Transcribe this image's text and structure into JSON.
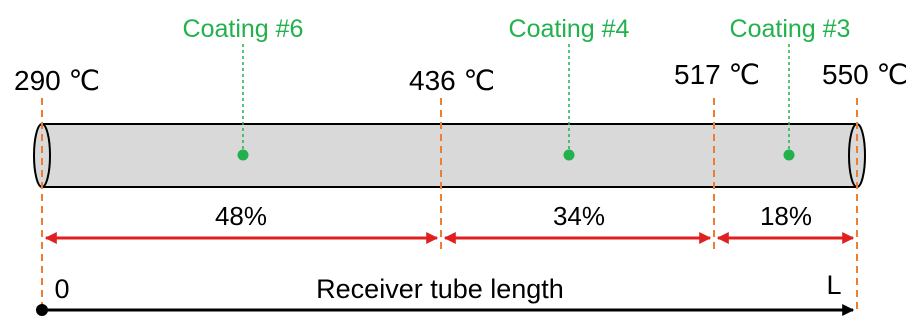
{
  "colors": {
    "coating": "#22b14c",
    "boundary": "#ed7d31",
    "segment_arrow": "#e02020",
    "axis": "#000000",
    "tube_fill": "#d9d9d9",
    "tube_stroke": "#000000"
  },
  "coatings": [
    {
      "label": "Coating #6"
    },
    {
      "label": "Coating #4"
    },
    {
      "label": "Coating #3"
    }
  ],
  "temperatures": [
    {
      "label": "290 ℃"
    },
    {
      "label": "436 ℃"
    },
    {
      "label": "517 ℃"
    },
    {
      "label": "550 ℃"
    }
  ],
  "segments": [
    {
      "label": "48%",
      "value": 48
    },
    {
      "label": "34%",
      "value": 34
    },
    {
      "label": "18%",
      "value": 18
    }
  ],
  "axis": {
    "start_label": "0",
    "end_label": "L",
    "title": "Receiver tube length"
  }
}
